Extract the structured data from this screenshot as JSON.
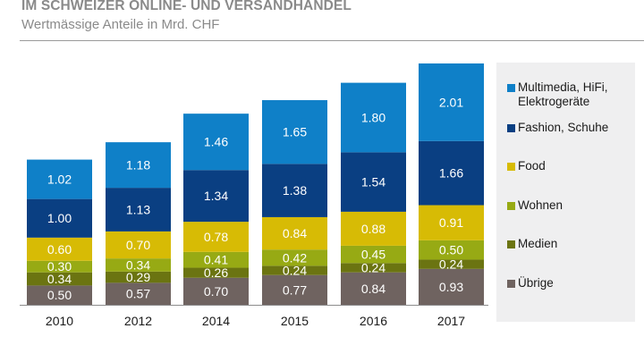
{
  "header": {
    "title": "IM SCHWEIZER ONLINE- UND VERSANDHANDEL",
    "subtitle": "Wertmässige Anteile in Mrd. CHF"
  },
  "chart_data": {
    "type": "bar",
    "stacked": true,
    "title": "IM SCHWEIZER ONLINE- UND VERSANDHANDEL",
    "subtitle": "Wertmässige Anteile in Mrd. CHF",
    "xlabel": "",
    "ylabel": "",
    "ylim": [
      0,
      6.25
    ],
    "grid": false,
    "legend_position": "right",
    "categories": [
      "2010",
      "2012",
      "2014",
      "2015",
      "2016",
      "2017"
    ],
    "series": [
      {
        "name": "Übrige",
        "color": "#6f6360",
        "values": [
          0.5,
          0.57,
          0.7,
          0.77,
          0.84,
          0.93
        ],
        "labels": [
          "0.50",
          "0.57",
          "0.70",
          "0.77",
          "0.84",
          "0.93"
        ]
      },
      {
        "name": "Medien",
        "color": "#6b7411",
        "values": [
          0.34,
          0.29,
          0.26,
          0.24,
          0.24,
          0.24
        ],
        "labels": [
          "0.34",
          "0.29",
          "0.26",
          "0.24",
          "0.24",
          "0.24"
        ]
      },
      {
        "name": "Wohnen",
        "color": "#97aa14",
        "values": [
          0.3,
          0.34,
          0.41,
          0.42,
          0.45,
          0.5
        ],
        "labels": [
          "0.30",
          "0.34",
          "0.41",
          "0.42",
          "0.45",
          "0.50"
        ]
      },
      {
        "name": "Food",
        "color": "#d7bb05",
        "values": [
          0.6,
          0.7,
          0.78,
          0.84,
          0.88,
          0.91
        ],
        "labels": [
          "0.60",
          "0.70",
          "0.78",
          "0.84",
          "0.88",
          "0.91"
        ]
      },
      {
        "name": "Fashion, Schuhe",
        "color": "#0a3f82",
        "values": [
          1.0,
          1.13,
          1.34,
          1.38,
          1.54,
          1.66
        ],
        "labels": [
          "1.00",
          "1.13",
          "1.34",
          "1.38",
          "1.54",
          "1.66"
        ]
      },
      {
        "name": "Multimedia, HiFi, Elektrogeräte",
        "color": "#0f80c8",
        "values": [
          1.02,
          1.18,
          1.46,
          1.65,
          1.8,
          2.01
        ],
        "labels": [
          "1.02",
          "1.18",
          "1.46",
          "1.65",
          "1.80",
          "2.01"
        ]
      }
    ]
  },
  "legend": {
    "items": [
      {
        "label_line1": "Multimedia, HiFi,",
        "label_line2": "Elektrogeräte",
        "color": "#0f80c8"
      },
      {
        "label_line1": "Fashion, Schuhe",
        "label_line2": "",
        "color": "#0a3f82"
      },
      {
        "label_line1": "Food",
        "label_line2": "",
        "color": "#d7bb05"
      },
      {
        "label_line1": "Wohnen",
        "label_line2": "",
        "color": "#97aa14"
      },
      {
        "label_line1": "Medien",
        "label_line2": "",
        "color": "#6b7411"
      },
      {
        "label_line1": "Übrige",
        "label_line2": "",
        "color": "#6f6360"
      }
    ]
  }
}
